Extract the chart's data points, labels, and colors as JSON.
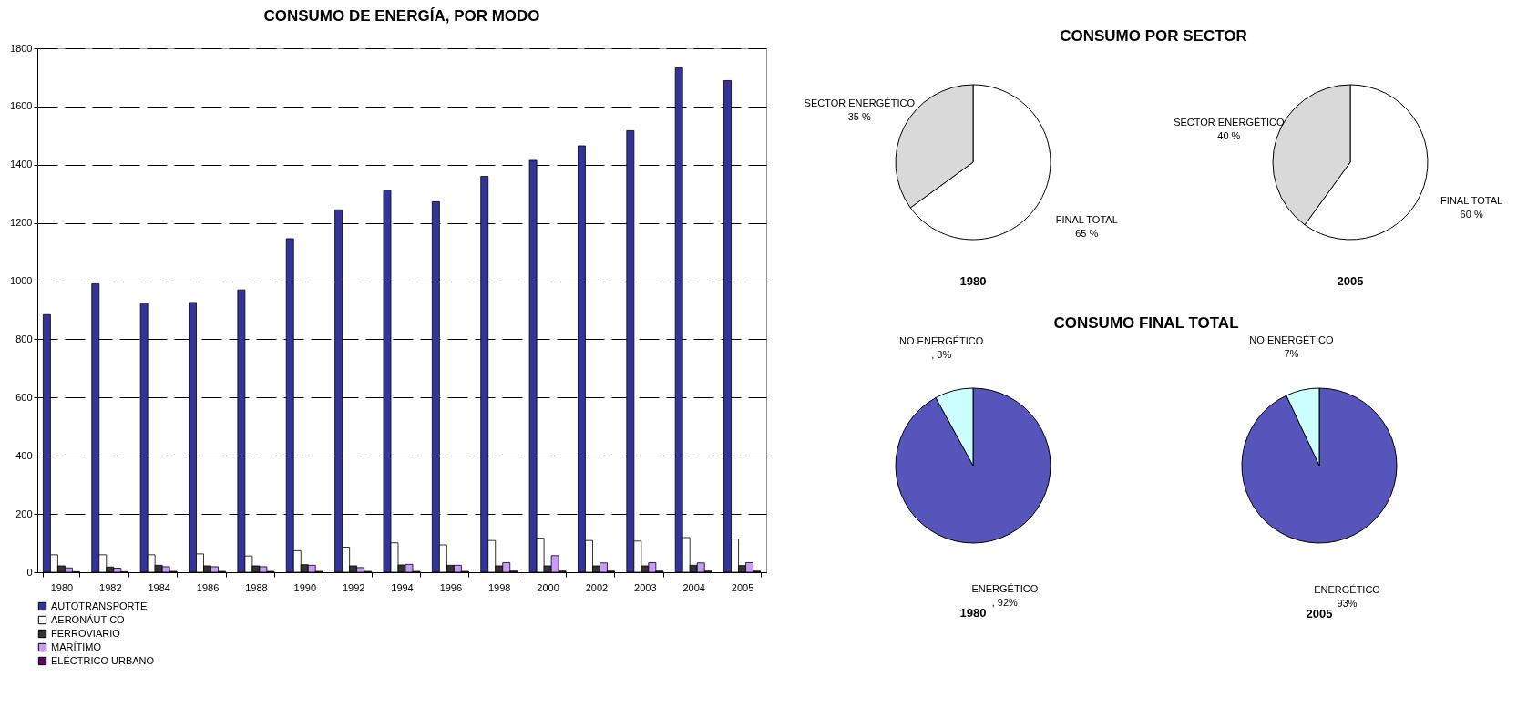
{
  "chart_data": [
    {
      "type": "bar",
      "title": "CONSUMO DE ENERGÍA, POR MODO",
      "categories": [
        "1980",
        "1982",
        "1984",
        "1986",
        "1988",
        "1990",
        "1992",
        "1994",
        "1996",
        "1998",
        "2000",
        "2002",
        "2003",
        "2004",
        "2005"
      ],
      "series": [
        {
          "name": "AUTOTRANSPORTE",
          "color": "#333399",
          "values": [
            885,
            991,
            925,
            927,
            970,
            1146,
            1245,
            1313,
            1273,
            1360,
            1415,
            1465,
            1517,
            1733,
            1689
          ]
        },
        {
          "name": "AERONÁUTICO",
          "color": "#ffffff",
          "values": [
            60,
            60,
            60,
            63,
            56,
            74,
            86,
            101,
            94,
            109,
            117,
            109,
            107,
            119,
            114
          ]
        },
        {
          "name": "FERROVIARIO",
          "color": "#333333",
          "values": [
            22,
            18,
            24,
            22,
            22,
            26,
            22,
            25,
            24,
            22,
            22,
            22,
            22,
            24,
            23
          ]
        },
        {
          "name": "MARÍTIMO",
          "color": "#cc99ff",
          "values": [
            15,
            14,
            19,
            19,
            19,
            24,
            16,
            27,
            24,
            33,
            57,
            32,
            33,
            32,
            33
          ]
        },
        {
          "name": "ELÉCTRICO URBANO",
          "color": "#660066",
          "values": [
            2,
            2,
            3,
            3,
            3,
            3,
            3,
            3,
            3,
            4,
            4,
            4,
            4,
            4,
            4
          ]
        }
      ],
      "ylim": [
        0,
        1800
      ],
      "yticks": [
        0,
        200,
        400,
        600,
        800,
        1000,
        1200,
        1400,
        1600,
        1800
      ],
      "grid": "y",
      "legend": "bottom left"
    },
    {
      "type": "pie",
      "title": "CONSUMO POR SECTOR",
      "xlabel": "1980",
      "categories": [
        "FINAL TOTAL",
        "SECTOR ENERGÉTICO"
      ],
      "values": [
        65,
        35
      ],
      "colors": [
        "#ffffff",
        "#d9d9d9"
      ],
      "value_labels": [
        "65 %",
        "35 %"
      ]
    },
    {
      "type": "pie",
      "xlabel": "2005",
      "categories": [
        "FINAL TOTAL",
        "SECTOR ENERGÉTICO"
      ],
      "values": [
        60,
        40
      ],
      "colors": [
        "#ffffff",
        "#d9d9d9"
      ],
      "value_labels": [
        "60 %",
        "40 %"
      ]
    },
    {
      "type": "pie",
      "title": "CONSUMO FINAL TOTAL",
      "xlabel": "1980",
      "categories": [
        "ENERGÉTICO",
        "NO ENERGÉTICO"
      ],
      "values": [
        92,
        8
      ],
      "colors": [
        "#5555bb",
        "#ccffff"
      ],
      "value_labels": [
        ", 92%",
        ", 8%"
      ]
    },
    {
      "type": "pie",
      "xlabel": "2005",
      "categories": [
        "ENERGÉTICO",
        "NO ENERGÉTICO"
      ],
      "values": [
        93,
        7
      ],
      "colors": [
        "#5555bb",
        "#ccffff"
      ],
      "value_labels": [
        "93%",
        "7%"
      ]
    }
  ]
}
